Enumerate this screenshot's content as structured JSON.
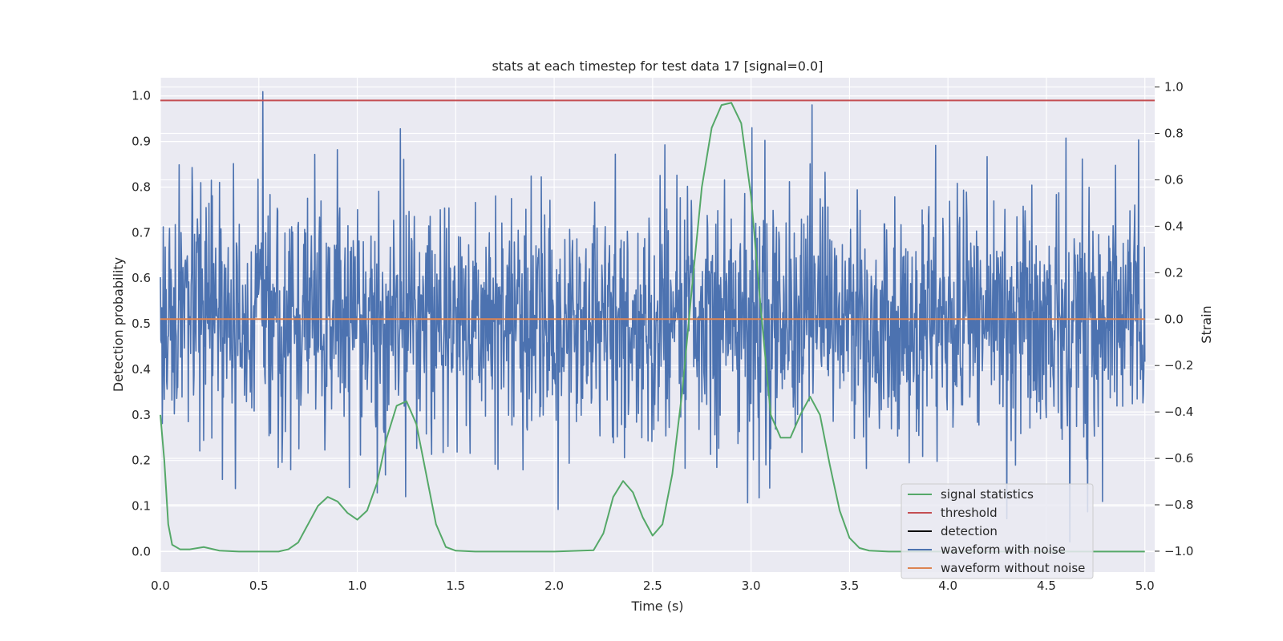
{
  "chart_data": {
    "type": "line",
    "title": "stats at each timestep for test data 17 [signal=0.0]",
    "xlabel": "Time (s)",
    "ylabel": "Detection probability",
    "y2label": "Strain",
    "xlim": [
      0.0,
      5.05
    ],
    "ylim": [
      -0.045,
      1.04
    ],
    "y2lim": [
      -1.09,
      1.04
    ],
    "grid": true,
    "legend_position": "bottom-right",
    "x_ticks": [
      0.0,
      0.5,
      1.0,
      1.5,
      2.0,
      2.5,
      3.0,
      3.5,
      4.0,
      4.5,
      5.0
    ],
    "x_tick_labels": [
      "0.0",
      "0.5",
      "1.0",
      "1.5",
      "2.0",
      "2.5",
      "3.0",
      "3.5",
      "4.0",
      "4.5",
      "5.0"
    ],
    "y_ticks": [
      0.0,
      0.1,
      0.2,
      0.3,
      0.4,
      0.5,
      0.6,
      0.7,
      0.8,
      0.9,
      1.0
    ],
    "y_tick_labels": [
      "0.0",
      "0.1",
      "0.2",
      "0.3",
      "0.4",
      "0.5",
      "0.6",
      "0.7",
      "0.8",
      "0.9",
      "1.0"
    ],
    "y2_ticks": [
      -1.0,
      -0.8,
      -0.6,
      -0.4,
      -0.2,
      0.0,
      0.2,
      0.4,
      0.6,
      0.8,
      1.0
    ],
    "y2_tick_labels": [
      "−1.0",
      "−0.8",
      "−0.6",
      "−0.4",
      "−0.2",
      "0.0",
      "0.2",
      "0.4",
      "0.6",
      "0.8",
      "1.0"
    ],
    "series": [
      {
        "name": "signal statistics",
        "color": "#55a868",
        "axis": "left",
        "x": [
          0.0,
          0.02,
          0.04,
          0.06,
          0.1,
          0.15,
          0.22,
          0.3,
          0.4,
          0.5,
          0.6,
          0.65,
          0.7,
          0.75,
          0.8,
          0.85,
          0.9,
          0.95,
          1.0,
          1.05,
          1.1,
          1.15,
          1.2,
          1.25,
          1.3,
          1.35,
          1.4,
          1.45,
          1.5,
          1.6,
          1.8,
          2.0,
          2.2,
          2.25,
          2.3,
          2.35,
          2.4,
          2.45,
          2.5,
          2.55,
          2.6,
          2.65,
          2.7,
          2.75,
          2.8,
          2.85,
          2.9,
          2.95,
          3.0,
          3.05,
          3.1,
          3.15,
          3.2,
          3.25,
          3.3,
          3.35,
          3.4,
          3.45,
          3.5,
          3.55,
          3.6,
          3.7,
          4.0,
          4.5,
          5.0
        ],
        "y": [
          0.3,
          0.2,
          0.06,
          0.015,
          0.005,
          0.005,
          0.01,
          0.002,
          0.0,
          0.0,
          0.0,
          0.005,
          0.02,
          0.06,
          0.1,
          0.12,
          0.11,
          0.085,
          0.07,
          0.09,
          0.15,
          0.25,
          0.32,
          0.33,
          0.28,
          0.17,
          0.06,
          0.01,
          0.002,
          0.0,
          0.0,
          0.0,
          0.003,
          0.04,
          0.12,
          0.155,
          0.13,
          0.075,
          0.035,
          0.06,
          0.17,
          0.35,
          0.58,
          0.8,
          0.93,
          0.98,
          0.985,
          0.94,
          0.78,
          0.53,
          0.3,
          0.25,
          0.25,
          0.3,
          0.34,
          0.3,
          0.19,
          0.09,
          0.03,
          0.008,
          0.002,
          0.0,
          0.0,
          0.0,
          0.0
        ]
      },
      {
        "name": "threshold",
        "color": "#c44e52",
        "axis": "left",
        "x": [
          0.0,
          5.05
        ],
        "y": [
          0.99,
          0.99
        ]
      },
      {
        "name": "detection",
        "color": "#000000",
        "axis": "left",
        "x": [],
        "y": []
      },
      {
        "name": "waveform with noise",
        "color": "#4c72b0",
        "axis": "right",
        "noise": {
          "x_start": 0.0,
          "x_end": 5.0,
          "samples": 2048,
          "std": 0.25,
          "seed": 17
        },
        "peaks": [
          {
            "x": 0.52,
            "y": 0.98
          },
          {
            "x": 1.22,
            "y": 0.82
          },
          {
            "x": 0.9,
            "y": 0.73
          },
          {
            "x": 4.2,
            "y": 0.7
          },
          {
            "x": 4.6,
            "y": 0.78
          },
          {
            "x": 3.07,
            "y": 0.77
          },
          {
            "x": 2.02,
            "y": -0.82
          },
          {
            "x": 4.3,
            "y": -0.86
          },
          {
            "x": 4.62,
            "y": -0.96
          },
          {
            "x": 4.71,
            "y": -0.83
          },
          {
            "x": 0.38,
            "y": -0.73
          },
          {
            "x": 3.04,
            "y": -0.77
          }
        ]
      },
      {
        "name": "waveform without noise",
        "color": "#dd8452",
        "axis": "right",
        "x": [
          0.0,
          5.0
        ],
        "y": [
          0.0,
          0.0
        ]
      }
    ]
  }
}
